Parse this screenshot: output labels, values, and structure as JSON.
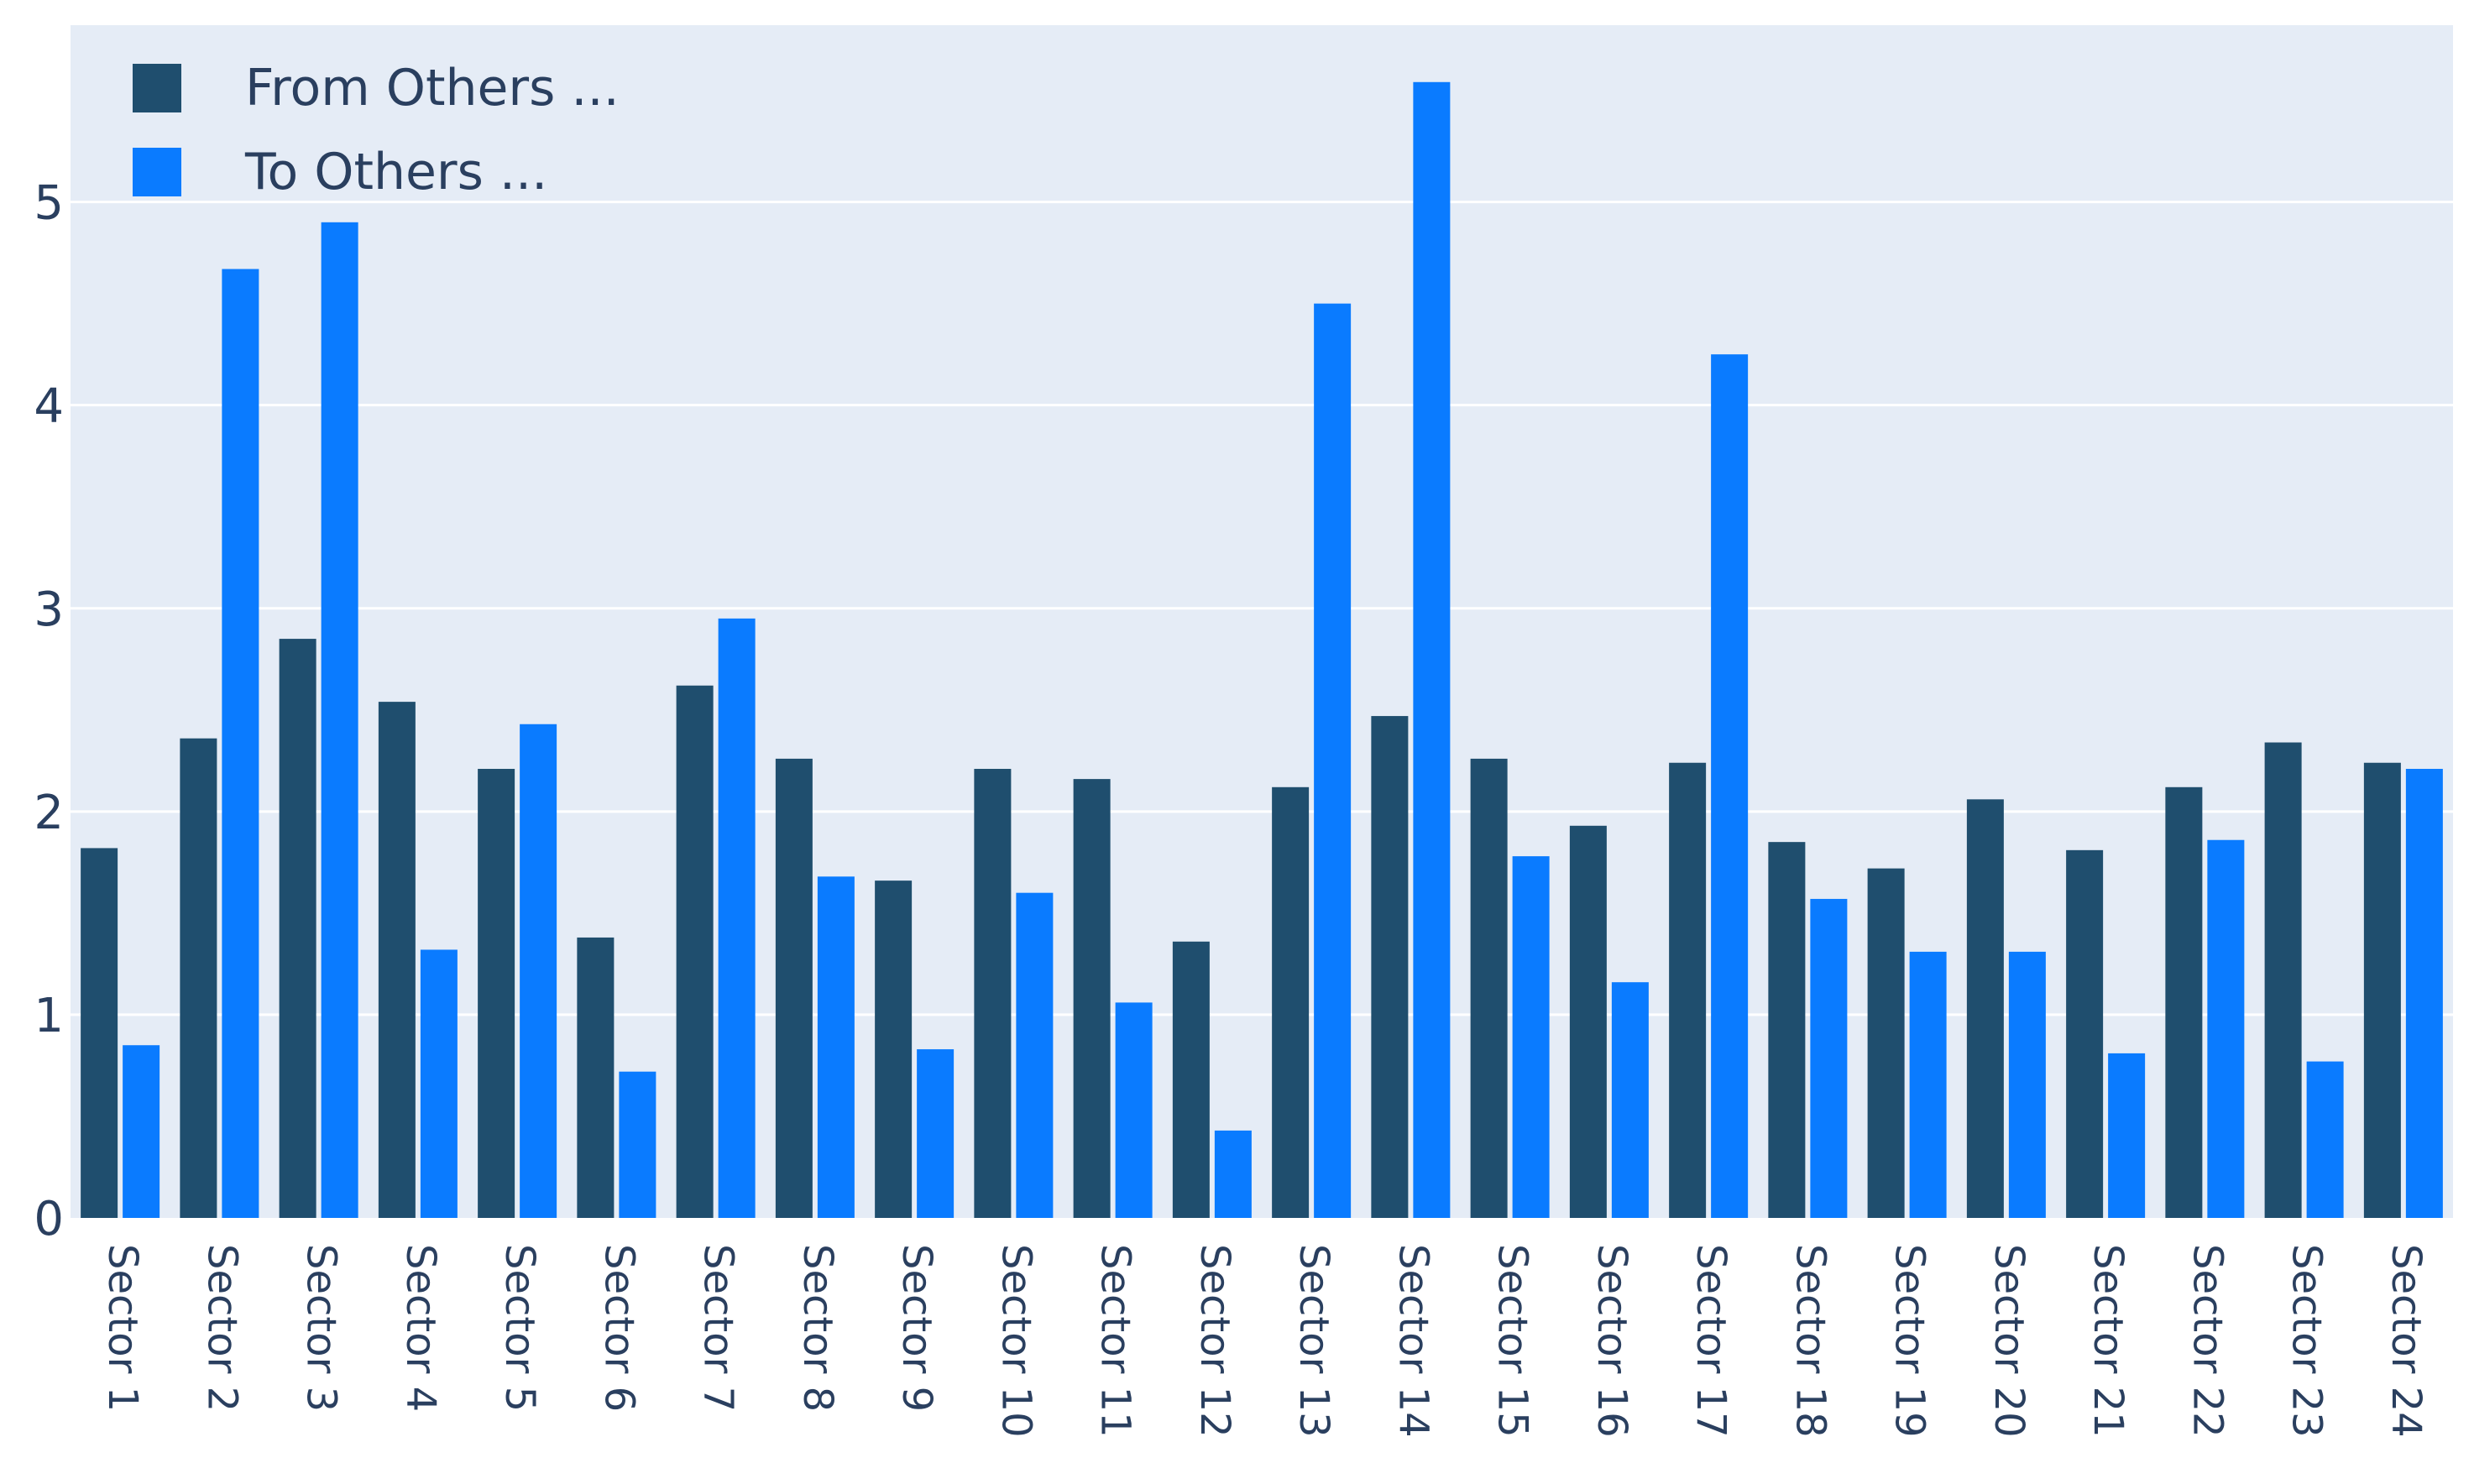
{
  "chart_data": {
    "type": "bar",
    "categories": [
      "Sector 1",
      "Sector 2",
      "Sector 3",
      "Sector 4",
      "Sector 5",
      "Sector 6",
      "Sector 7",
      "Sector 8",
      "Sector 9",
      "Sector 10",
      "Sector 11",
      "Sector 12",
      "Sector 13",
      "Sector 14",
      "Sector 15",
      "Sector 16",
      "Sector 17",
      "Sector 18",
      "Sector 19",
      "Sector 20",
      "Sector 21",
      "Sector 22",
      "Sector 23",
      "Sector 24"
    ],
    "series": [
      {
        "name": "From Others ...",
        "color": "#1f4e6e",
        "values": [
          1.82,
          2.36,
          2.85,
          2.54,
          2.21,
          1.38,
          2.62,
          2.26,
          1.66,
          2.21,
          2.16,
          1.36,
          2.12,
          2.47,
          2.26,
          1.93,
          2.24,
          1.85,
          1.72,
          2.06,
          1.81,
          2.12,
          2.34,
          2.24
        ]
      },
      {
        "name": "To Others ...",
        "color": "#0a7bff",
        "values": [
          0.85,
          4.67,
          4.9,
          1.32,
          2.43,
          0.72,
          2.95,
          1.68,
          0.83,
          1.6,
          1.06,
          0.43,
          4.5,
          5.59,
          1.78,
          1.16,
          4.25,
          1.57,
          1.31,
          1.31,
          0.81,
          1.86,
          0.77,
          2.21
        ]
      }
    ],
    "yticks": [
      "0",
      "1",
      "2",
      "3",
      "4",
      "5"
    ],
    "ylim": [
      0,
      5.87
    ],
    "grid": true,
    "legend_position": "top-left",
    "colors": {
      "plot_background": "#e5ecf6",
      "gridline": "#ffffff",
      "text": "#2a3f5f"
    }
  }
}
